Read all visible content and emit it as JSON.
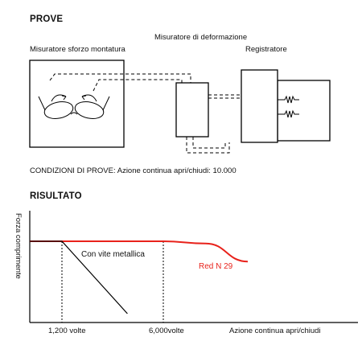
{
  "test_section": {
    "heading": "PROVE",
    "label_deformation_meter": "Misuratore di deformazione",
    "label_frame_stress_meter": "Misuratore sforzo montatura",
    "label_recorder": "Registratore",
    "conditions": "CONDIZIONI DI PROVE: Azione continua apri/chiudi: 10.000"
  },
  "results_section": {
    "heading": "RISULTATO",
    "chart_data": {
      "type": "line",
      "ylabel": "Forza comprimente",
      "xlabel": "Azione continua apri/chiudi",
      "x_ticks": [
        "1,200 volte",
        "6,000volte"
      ],
      "series": [
        {
          "name": "Red N 29",
          "color": "#e8221b",
          "points": [
            [
              0,
              1.0
            ],
            [
              1200,
              1.0
            ],
            [
              6000,
              1.0
            ],
            [
              8000,
              0.97
            ],
            [
              10000,
              0.72
            ]
          ]
        },
        {
          "name": "Con vite metallica",
          "color": "#000000",
          "points": [
            [
              0,
              1.0
            ],
            [
              1200,
              1.0
            ],
            [
              4300,
              0.0
            ]
          ]
        }
      ]
    }
  }
}
